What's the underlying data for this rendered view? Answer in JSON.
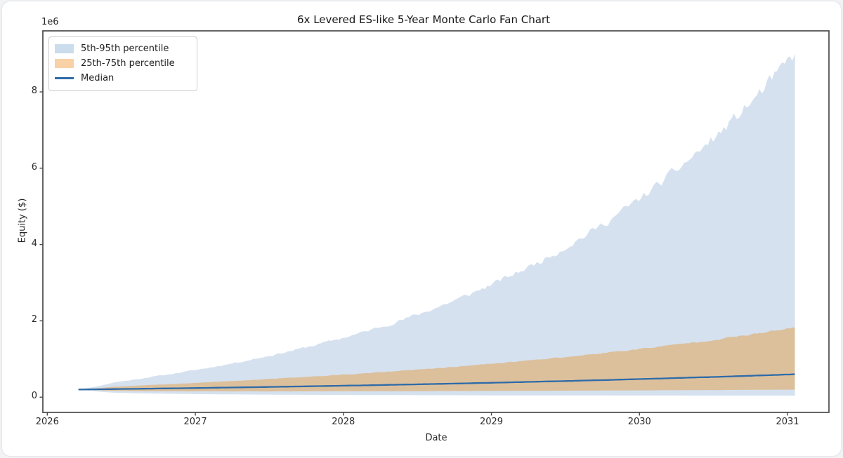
{
  "figure": {
    "title": "6x Levered ES-like 5-Year Monte Carlo Fan Chart",
    "offset_text": "1e6",
    "xlabel": "Date",
    "ylabel": "Equity ($)"
  },
  "legend": {
    "items": [
      {
        "label": "5th-95th percentile",
        "type": "patch",
        "color": "#cbdcec"
      },
      {
        "label": "25th-75th percentile",
        "type": "patch",
        "color": "#f8d1a6"
      },
      {
        "label": "Median",
        "type": "line",
        "color": "#2e6ba8"
      }
    ]
  },
  "chart_data": {
    "type": "area",
    "title": "6x Levered ES-like 5-Year Monte Carlo Fan Chart",
    "xlabel": "Date",
    "ylabel": "Equity ($)",
    "y_offset_multiplier": "1e6",
    "grid": false,
    "legend_position": "upper left",
    "xlim": [
      2025.97,
      2031.28
    ],
    "ylim": [
      -0.4,
      9.6
    ],
    "x_ticks": [
      2026,
      2027,
      2028,
      2029,
      2030,
      2031
    ],
    "y_ticks": [
      0,
      2,
      4,
      6,
      8
    ],
    "x": [
      2026.21,
      2026.45,
      2026.69,
      2026.94,
      2027.18,
      2027.42,
      2027.66,
      2027.9,
      2028.15,
      2028.39,
      2028.63,
      2028.87,
      2029.11,
      2029.36,
      2029.6,
      2029.84,
      2030.08,
      2030.32,
      2030.57,
      2030.81,
      2031.05
    ],
    "series": [
      {
        "name": "p95",
        "role": "band-outer-top",
        "values": [
          0.2,
          0.387,
          0.525,
          0.673,
          0.836,
          1.019,
          1.226,
          1.458,
          1.721,
          2.017,
          2.351,
          2.727,
          3.15,
          3.625,
          4.159,
          4.757,
          5.427,
          6.178,
          7.018,
          7.954,
          9.0
        ]
      },
      {
        "name": "p75",
        "role": "band-inner-top",
        "values": [
          0.2,
          0.271,
          0.317,
          0.362,
          0.409,
          0.458,
          0.511,
          0.566,
          0.626,
          0.69,
          0.759,
          0.833,
          0.913,
          0.999,
          1.092,
          1.192,
          1.299,
          1.415,
          1.54,
          1.675,
          1.82
        ]
      },
      {
        "name": "median",
        "role": "line",
        "values": [
          0.2,
          0.211,
          0.223,
          0.236,
          0.249,
          0.263,
          0.278,
          0.294,
          0.31,
          0.328,
          0.346,
          0.366,
          0.387,
          0.409,
          0.432,
          0.456,
          0.482,
          0.509,
          0.538,
          0.568,
          0.6
        ]
      },
      {
        "name": "p25",
        "role": "band-inner-bottom",
        "values": [
          0.2,
          0.165,
          0.157,
          0.153,
          0.152,
          0.151,
          0.151,
          0.152,
          0.154,
          0.156,
          0.158,
          0.161,
          0.164,
          0.167,
          0.171,
          0.174,
          0.179,
          0.183,
          0.188,
          0.193,
          0.198
        ]
      },
      {
        "name": "p5",
        "role": "band-outer-bottom",
        "values": [
          0.2,
          0.115,
          0.095,
          0.083,
          0.074,
          0.068,
          0.063,
          0.059,
          0.056,
          0.053,
          0.051,
          0.049,
          0.047,
          0.046,
          0.045,
          0.044,
          0.043,
          0.042,
          0.041,
          0.041,
          0.04
        ]
      }
    ],
    "colors": {
      "outer_band_fill": "#d5e1ef",
      "inner_band_fill": "#dcc09c",
      "median_line": "#2e6ba8",
      "spine": "#4a4a4a",
      "tick_label": "#2b2b2b"
    },
    "edge_noise": {
      "p95": 0.022,
      "p75": 0.014,
      "median": 0.004,
      "p25": 0.009,
      "p5": 0.013
    },
    "noise_seed": 11
  }
}
